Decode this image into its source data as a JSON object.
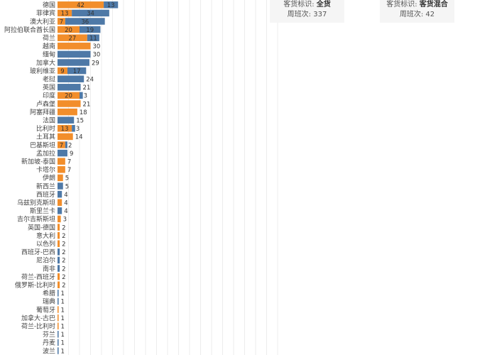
{
  "tooltips": {
    "all_cargo": {
      "label": "客货标识:",
      "value": "全货",
      "count_label": "周班次:",
      "count": "337"
    },
    "mixed": {
      "label": "客货标识:",
      "value": "客货混合",
      "count_label": "周班次:",
      "count": "42"
    }
  },
  "colors": {
    "orange": "#F28E2B",
    "blue": "#4E79A7",
    "grid": "#ececec"
  },
  "chart_data": {
    "type": "bar",
    "orientation": "horizontal",
    "stacked": true,
    "categories": [
      "德国",
      "菲律宾",
      "澳大利亚",
      "阿拉伯联合酋长国",
      "荷兰",
      "越南",
      "缅甸",
      "加拿大",
      "玻利维亚",
      "老挝",
      "英国",
      "印度",
      "卢森堡",
      "阿塞拜疆",
      "法国",
      "比利时",
      "土耳其",
      "巴基斯坦",
      "孟加拉",
      "新加坡-泰国",
      "卡塔尔",
      "伊朗",
      "新西兰",
      "西班牙",
      "乌兹别克斯坦",
      "斯里兰卡",
      "吉尔吉斯斯坦",
      "英国-德国",
      "意大利",
      "以色列",
      "西班牙-巴西",
      "尼泊尔",
      "南非",
      "荷兰-西班牙",
      "俄罗斯-比利时",
      "希腊",
      "瑞典",
      "葡萄牙",
      "加拿大-古巴",
      "荷兰-比利时",
      "芬兰",
      "丹麦",
      "波兰"
    ],
    "series": [
      {
        "color": "#F28E2B",
        "values": [
          42,
          13,
          7,
          20,
          27,
          30,
          0,
          0,
          9,
          0,
          0,
          20,
          21,
          18,
          0,
          13,
          14,
          7,
          0,
          7,
          7,
          5,
          0,
          0,
          4,
          0,
          3,
          2,
          2,
          2,
          0,
          0,
          0,
          2,
          2,
          0,
          0,
          1,
          1,
          1,
          0,
          0,
          0
        ]
      },
      {
        "color": "#4E79A7",
        "values": [
          13,
          34,
          36,
          19,
          11,
          0,
          30,
          29,
          17,
          24,
          21,
          3,
          0,
          0,
          15,
          3,
          0,
          2,
          9,
          0,
          0,
          0,
          5,
          4,
          0,
          4,
          0,
          0,
          0,
          0,
          2,
          2,
          2,
          0,
          0,
          1,
          1,
          0,
          0,
          0,
          1,
          1,
          1
        ]
      }
    ],
    "totals": [
      55,
      47,
      43,
      39,
      38,
      30,
      30,
      29,
      26,
      24,
      21,
      23,
      21,
      18,
      15,
      16,
      14,
      9,
      9,
      7,
      7,
      5,
      5,
      4,
      4,
      4,
      3,
      2,
      2,
      2,
      2,
      2,
      2,
      2,
      2,
      1,
      1,
      1,
      1,
      1,
      1,
      1,
      1
    ],
    "xlim": [
      0,
      200
    ],
    "grid": true
  }
}
